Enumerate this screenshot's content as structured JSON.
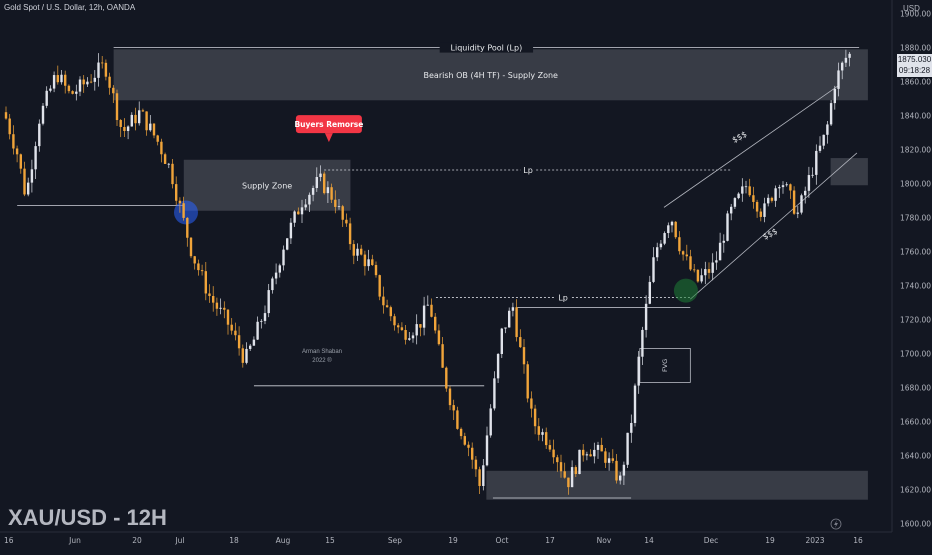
{
  "header": {
    "symbol_description": "Gold Spot / U.S. Dollar, 12h, OANDA",
    "ticker_label": "XAU/USD - 12H",
    "currency": "USD"
  },
  "price_badge": {
    "price": "1875.030",
    "countdown": "09:18:28"
  },
  "watermark": {
    "name": "Arman Shaban",
    "year": "2022 ®"
  },
  "colors": {
    "background": "#131722",
    "bull_candle": "#e0e3eb",
    "bear_candle": "#f0a43a",
    "zone_fill": "#434651",
    "callout": "#f23645",
    "blue_marker": "#2962ff",
    "green_marker": "#1e7e34"
  },
  "chart_data": {
    "type": "candlestick",
    "title": "Gold Spot / U.S. Dollar, 12h, OANDA",
    "y_axis": {
      "ylim": [
        1595,
        1908
      ],
      "ticks": [
        1600,
        1620,
        1640,
        1660,
        1680,
        1700,
        1720,
        1740,
        1760,
        1780,
        1800,
        1820,
        1840,
        1860,
        1880,
        1900
      ]
    },
    "x_axis": {
      "tick_labels": [
        "16",
        "Jun",
        "20",
        "Jul",
        "18",
        "Aug",
        "15",
        "Sep",
        "19",
        "Oct",
        "17",
        "Nov",
        "14",
        "Dec",
        "19",
        "2023",
        "16"
      ]
    },
    "price_path": [
      {
        "x": 0.0,
        "y": 1842
      },
      {
        "x": 0.6,
        "y": 1818
      },
      {
        "x": 1.0,
        "y": 1792
      },
      {
        "x": 1.6,
        "y": 1838
      },
      {
        "x": 2.4,
        "y": 1865
      },
      {
        "x": 3.0,
        "y": 1852
      },
      {
        "x": 3.6,
        "y": 1858
      },
      {
        "x": 4.6,
        "y": 1870
      },
      {
        "x": 5.4,
        "y": 1830
      },
      {
        "x": 6.2,
        "y": 1842
      },
      {
        "x": 7.0,
        "y": 1825
      },
      {
        "x": 7.6,
        "y": 1808
      },
      {
        "x": 8.1,
        "y": 1782
      },
      {
        "x": 8.6,
        "y": 1758
      },
      {
        "x": 9.4,
        "y": 1733
      },
      {
        "x": 10.2,
        "y": 1718
      },
      {
        "x": 11.0,
        "y": 1696
      },
      {
        "x": 11.4,
        "y": 1708
      },
      {
        "x": 12.0,
        "y": 1730
      },
      {
        "x": 12.8,
        "y": 1766
      },
      {
        "x": 13.6,
        "y": 1790
      },
      {
        "x": 14.4,
        "y": 1802
      },
      {
        "x": 15.1,
        "y": 1790
      },
      {
        "x": 15.9,
        "y": 1762
      },
      {
        "x": 16.7,
        "y": 1752
      },
      {
        "x": 17.3,
        "y": 1730
      },
      {
        "x": 18.1,
        "y": 1712
      },
      {
        "x": 18.9,
        "y": 1716
      },
      {
        "x": 19.4,
        "y": 1730
      },
      {
        "x": 20.0,
        "y": 1690
      },
      {
        "x": 20.6,
        "y": 1662
      },
      {
        "x": 21.2,
        "y": 1645
      },
      {
        "x": 21.7,
        "y": 1622
      },
      {
        "x": 22.2,
        "y": 1668
      },
      {
        "x": 22.7,
        "y": 1712
      },
      {
        "x": 23.2,
        "y": 1728
      },
      {
        "x": 24.1,
        "y": 1660
      },
      {
        "x": 25.0,
        "y": 1646
      },
      {
        "x": 25.7,
        "y": 1624
      },
      {
        "x": 26.5,
        "y": 1645
      },
      {
        "x": 27.4,
        "y": 1640
      },
      {
        "x": 28.1,
        "y": 1625
      },
      {
        "x": 28.6,
        "y": 1660
      },
      {
        "x": 29.1,
        "y": 1712
      },
      {
        "x": 29.7,
        "y": 1760
      },
      {
        "x": 30.4,
        "y": 1782
      },
      {
        "x": 30.9,
        "y": 1760
      },
      {
        "x": 31.6,
        "y": 1742
      },
      {
        "x": 32.4,
        "y": 1752
      },
      {
        "x": 33.1,
        "y": 1782
      },
      {
        "x": 33.9,
        "y": 1800
      },
      {
        "x": 34.6,
        "y": 1782
      },
      {
        "x": 35.4,
        "y": 1804
      },
      {
        "x": 36.2,
        "y": 1782
      },
      {
        "x": 36.9,
        "y": 1810
      },
      {
        "x": 37.5,
        "y": 1830
      },
      {
        "x": 37.9,
        "y": 1860
      },
      {
        "x": 38.4,
        "y": 1874
      },
      {
        "x": 38.8,
        "y": 1878
      }
    ],
    "annotations": [
      {
        "kind": "zone",
        "label": "Bearish OB (4H TF) - Supply Zone",
        "x1": 5.0,
        "x2": 39.4,
        "y1": 1849,
        "y2": 1879
      },
      {
        "kind": "zone",
        "label": "Supply Zone",
        "x1": 8.2,
        "x2": 15.8,
        "y1": 1784,
        "y2": 1814
      },
      {
        "kind": "zone",
        "label": "",
        "x1": 37.7,
        "x2": 39.4,
        "y1": 1799,
        "y2": 1815
      },
      {
        "kind": "zone",
        "label": "",
        "x1": 22.0,
        "x2": 39.4,
        "y1": 1614,
        "y2": 1631
      },
      {
        "kind": "zone",
        "label": "FVG",
        "x1": 29.0,
        "x2": 31.3,
        "y1": 1683,
        "y2": 1703
      },
      {
        "kind": "level",
        "label": "Liquidity Pool (Lp)",
        "x1": 5.0,
        "x2": 39.0,
        "y": 1880,
        "style": "solid"
      },
      {
        "kind": "level",
        "label": "Lp",
        "x1": 14.6,
        "x2": 33.2,
        "y": 1808,
        "style": "dashed"
      },
      {
        "kind": "level",
        "label": "Lp",
        "x1": 19.7,
        "x2": 31.3,
        "y": 1733,
        "style": "dashed"
      },
      {
        "kind": "level",
        "label": "",
        "x1": 23.4,
        "x2": 31.3,
        "y": 1727,
        "style": "solid"
      },
      {
        "kind": "level",
        "label": "",
        "x1": 0.6,
        "x2": 8.2,
        "y": 1787,
        "style": "solid"
      },
      {
        "kind": "level",
        "label": "",
        "x1": 11.4,
        "x2": 21.9,
        "y": 1681,
        "style": "solid"
      },
      {
        "kind": "level",
        "label": "",
        "x1": 22.3,
        "x2": 28.6,
        "y": 1615,
        "style": "solid"
      },
      {
        "kind": "callout",
        "label": "Buyers Remorse",
        "x": 15.0,
        "y": 1812
      },
      {
        "kind": "trend-label",
        "label": "$$$",
        "x": 33.6,
        "y": 1826
      },
      {
        "kind": "trend-label",
        "label": "$$$",
        "x": 35.0,
        "y": 1769
      },
      {
        "kind": "marker",
        "label": "",
        "x": 8.3,
        "y": 1783,
        "color": "blue"
      },
      {
        "kind": "marker",
        "label": "",
        "x": 31.1,
        "y": 1737,
        "color": "green"
      }
    ],
    "channel": {
      "upper": [
        {
          "x": 30.1,
          "y": 1786
        },
        {
          "x": 38.1,
          "y": 1858
        }
      ],
      "lower": [
        {
          "x": 31.3,
          "y": 1732
        },
        {
          "x": 38.9,
          "y": 1818
        }
      ]
    }
  }
}
